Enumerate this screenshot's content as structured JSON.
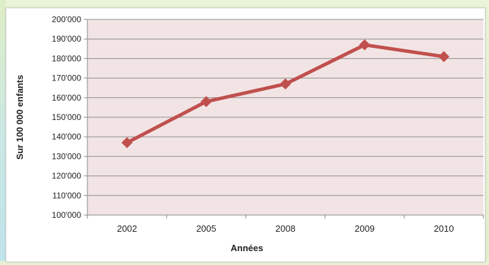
{
  "colors": {
    "plot_background": "#f2e4e4",
    "series_line": "#c0504d",
    "grid": "#8c8c8c"
  },
  "chart_data": {
    "type": "line",
    "categories": [
      "2002",
      "2005",
      "2008",
      "2009",
      "2010"
    ],
    "series": [
      {
        "values": [
          137000,
          158000,
          167000,
          187000,
          181000
        ],
        "marker": "diamond"
      }
    ],
    "xlabel": "Années",
    "ylabel": "Sur 100 000 enfants",
    "ylim": [
      100000,
      200000
    ],
    "yticks": [
      "100'000",
      "110'000",
      "120'000",
      "130'000",
      "140'000",
      "150'000",
      "160'000",
      "170'000",
      "180'000",
      "190'000",
      "200'000"
    ],
    "grid": true,
    "legend": "none"
  }
}
